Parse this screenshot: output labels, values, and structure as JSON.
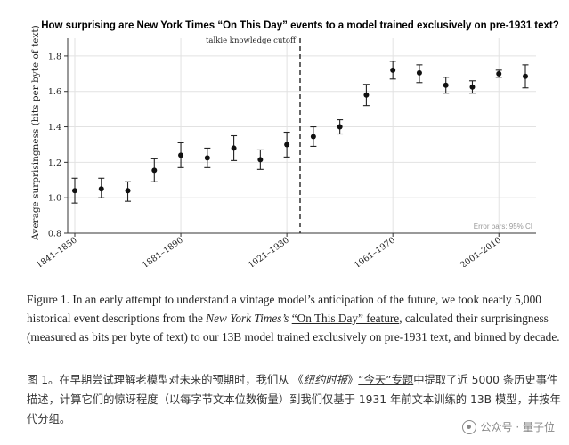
{
  "chart_data": {
    "type": "scatter",
    "title": "How surprising are New York Times “On This Day” events to a model trained exclusively on pre-1931 text?",
    "xlabel": "",
    "ylabel": "Average surprisingness (bits per byte of text)",
    "ylim": [
      0.8,
      1.9
    ],
    "yticks": [
      0.8,
      1.0,
      1.2,
      1.4,
      1.6,
      1.8
    ],
    "grid": true,
    "cutoff_label": "talkie knowledge cutoff",
    "error_note": "Error bars: 95% CI",
    "tick_labels": [
      "1841–1850",
      "1881–1890",
      "1921–1930",
      "1961–1970",
      "2001–2010"
    ],
    "tick_decade_index": [
      0,
      4,
      8,
      12,
      16
    ],
    "cutoff_after_index": 8,
    "n_decades": 18,
    "points": [
      {
        "y": 1.04,
        "lo": 0.97,
        "hi": 1.11
      },
      {
        "y": 1.05,
        "lo": 1.0,
        "hi": 1.11
      },
      {
        "y": 1.04,
        "lo": 0.98,
        "hi": 1.09
      },
      {
        "y": 1.155,
        "lo": 1.09,
        "hi": 1.22
      },
      {
        "y": 1.24,
        "lo": 1.17,
        "hi": 1.31
      },
      {
        "y": 1.225,
        "lo": 1.17,
        "hi": 1.28
      },
      {
        "y": 1.28,
        "lo": 1.21,
        "hi": 1.35
      },
      {
        "y": 1.215,
        "lo": 1.16,
        "hi": 1.27
      },
      {
        "y": 1.3,
        "lo": 1.23,
        "hi": 1.37
      },
      {
        "y": 1.345,
        "lo": 1.29,
        "hi": 1.4
      },
      {
        "y": 1.4,
        "lo": 1.36,
        "hi": 1.44
      },
      {
        "y": 1.58,
        "lo": 1.52,
        "hi": 1.64
      },
      {
        "y": 1.72,
        "lo": 1.67,
        "hi": 1.77
      },
      {
        "y": 1.705,
        "lo": 1.65,
        "hi": 1.75
      },
      {
        "y": 1.635,
        "lo": 1.59,
        "hi": 1.68
      },
      {
        "y": 1.625,
        "lo": 1.59,
        "hi": 1.66
      },
      {
        "y": 1.7,
        "lo": 1.68,
        "hi": 1.72
      },
      {
        "y": 1.685,
        "lo": 1.62,
        "hi": 1.75
      }
    ]
  },
  "caption_en": {
    "part1": "Figure 1. In an early attempt to understand a vintage model’s anticipation of the future, we took nearly 5,000 historical event descriptions from the ",
    "italic": "New York Times’s",
    "link": "“On This Day” feature",
    "part2": ", calculated their surprisingness (measured as bits per byte of text) to our 13B model trained exclusively on pre-1931 text, and binned by decade."
  },
  "caption_zh": {
    "part1": "图 1。在早期尝试理解老模型对未来的预期时，我们从 《",
    "italic": "纽约时报",
    "mid": "》",
    "link": "“今天”专题",
    "part2": "中提取了近 5000 条历史事件描述，计算它们的惊讶程度（以每字节文本位数衡量）到我们仅基于 1931 年前文本训练的 13B 模型，并按年代分组。"
  },
  "watermark": {
    "text": "公众号 · 量子位",
    "icon": "wechat-icon"
  }
}
